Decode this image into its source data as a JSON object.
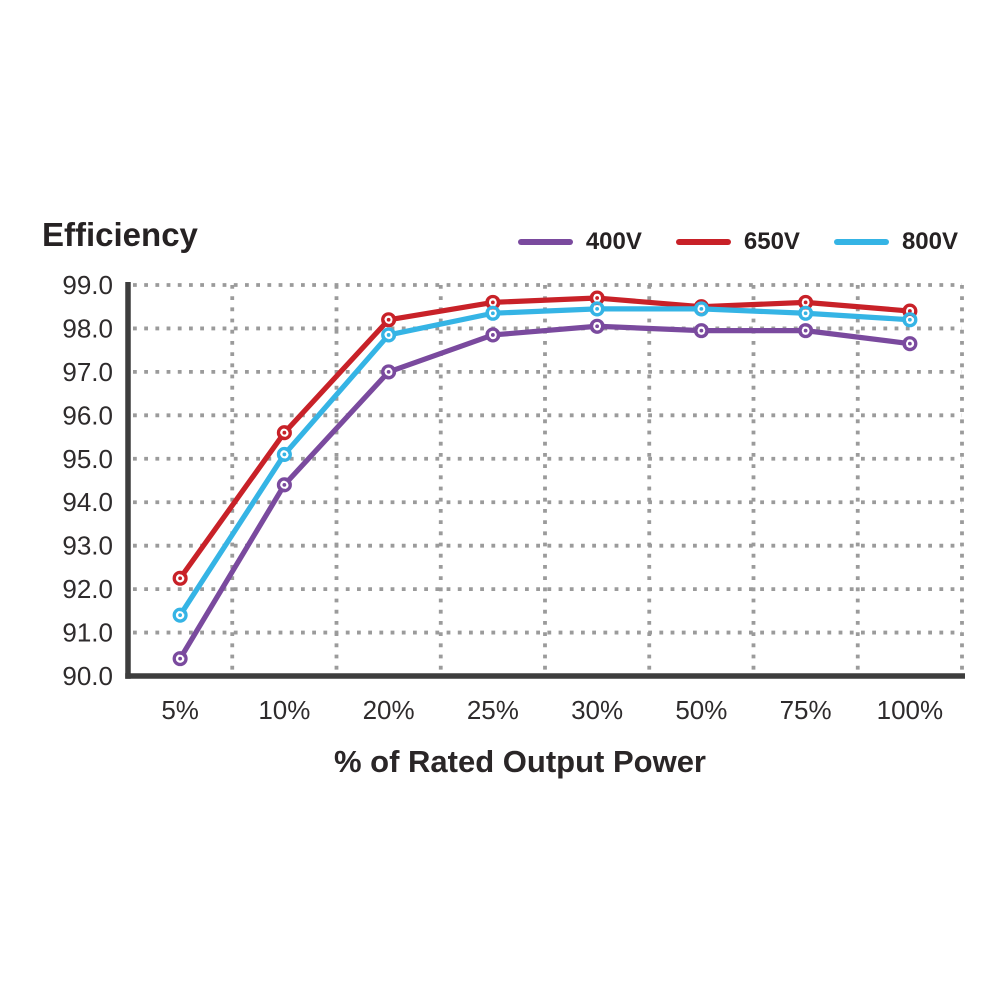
{
  "header": {
    "title": "Efficiency"
  },
  "chart_data": {
    "type": "line",
    "title": "Efficiency",
    "xlabel": "% of Rated Output Power",
    "ylabel": "",
    "categories": [
      "5%",
      "10%",
      "20%",
      "25%",
      "30%",
      "50%",
      "75%",
      "100%"
    ],
    "series": [
      {
        "name": "400V",
        "color": "#7a4a9e",
        "values": [
          90.4,
          94.4,
          97.0,
          97.85,
          98.05,
          97.95,
          97.95,
          97.65
        ]
      },
      {
        "name": "650V",
        "color": "#c82128",
        "values": [
          92.25,
          95.6,
          98.2,
          98.6,
          98.7,
          98.5,
          98.6,
          98.4
        ]
      },
      {
        "name": "800V",
        "color": "#35b4e5",
        "values": [
          91.4,
          95.1,
          97.85,
          98.35,
          98.45,
          98.45,
          98.35,
          98.2
        ]
      }
    ],
    "ylim": [
      90,
      99
    ],
    "ytick_step": 1,
    "ytick_labels": [
      "90.0",
      "91.0",
      "92.0",
      "93.0",
      "94.0",
      "95.0",
      "96.0",
      "97.0",
      "98.0",
      "99.0"
    ],
    "grid": "dotted",
    "grid_color": "#9b9b9b",
    "axis_color": "#3d3d3d",
    "tick_label_color": "#2e2b2c",
    "legend_position": "top-right",
    "marker": "open-circle",
    "line_width": 5.2
  }
}
